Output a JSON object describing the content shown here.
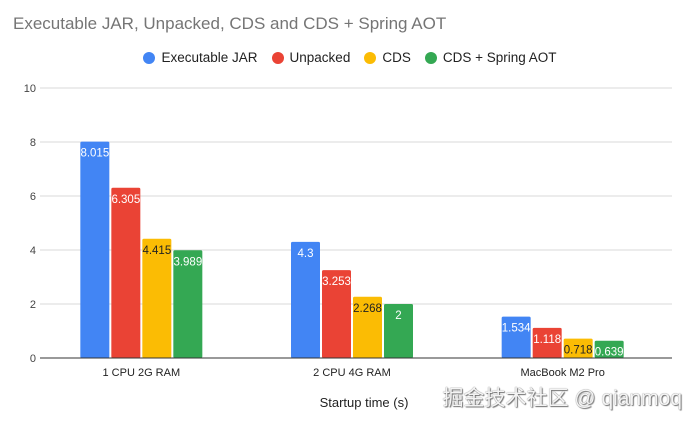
{
  "chart_data": {
    "type": "bar",
    "title": "Executable JAR, Unpacked, CDS and CDS + Spring AOT",
    "xlabel": "Startup time (s)",
    "ylabel": "",
    "ylim": [
      0,
      10
    ],
    "yticks": [
      "0",
      "2",
      "4",
      "6",
      "8",
      "10"
    ],
    "grid": true,
    "legend_position": "top",
    "categories": [
      "1 CPU 2G RAM",
      "2 CPU 4G RAM",
      "MacBook M2 Pro"
    ],
    "series": [
      {
        "name": "Executable JAR",
        "color": "#4285f4",
        "label_color": "#ffffff",
        "values": [
          8.015,
          4.3,
          1.534
        ],
        "labels": [
          "8.015",
          "4.3",
          "1.534"
        ]
      },
      {
        "name": "Unpacked",
        "color": "#ea4335",
        "label_color": "#ffffff",
        "values": [
          6.305,
          3.253,
          1.118
        ],
        "labels": [
          "6.305",
          "3.253",
          "1.118"
        ]
      },
      {
        "name": "CDS",
        "color": "#fbbc04",
        "label_color": "#222222",
        "values": [
          4.415,
          2.268,
          0.718
        ],
        "labels": [
          "4.415",
          "2.268",
          "0.718"
        ]
      },
      {
        "name": "CDS + Spring AOT",
        "color": "#34a853",
        "label_color": "#ffffff",
        "values": [
          3.989,
          2,
          0.639
        ],
        "labels": [
          "3.989",
          "2",
          "0.639"
        ]
      }
    ]
  },
  "watermark": "掘金技术社区 @ qianmoq"
}
